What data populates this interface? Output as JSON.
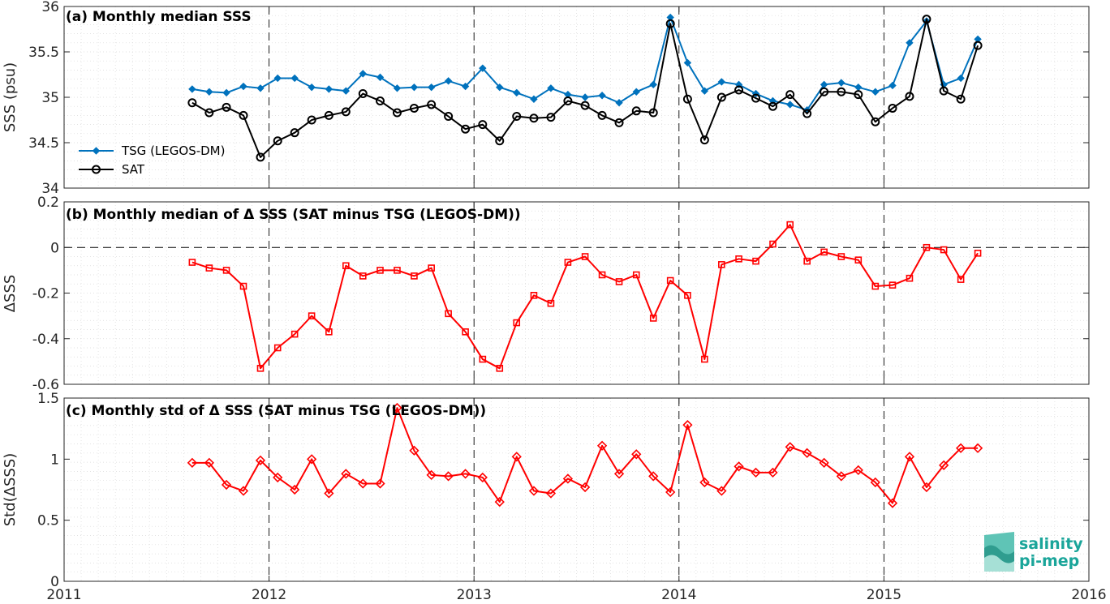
{
  "logo": {
    "line1": "salinity",
    "line2": "pi-mep"
  },
  "colors": {
    "tsg": "#0072BD",
    "sat": "#000000",
    "delta": "#ff0000",
    "logo": "#1aa59a"
  },
  "chart_data": [
    {
      "type": "line",
      "title": "(a) Monthly median SSS",
      "ylabel": "SSS (psu)",
      "xlim": [
        2011,
        2016
      ],
      "ylim": [
        34,
        36
      ],
      "xticks": [
        "2011",
        "2012",
        "2013",
        "2014",
        "2015",
        "2016"
      ],
      "yticks": [
        "34",
        "34.5",
        "35",
        "35.5",
        "36"
      ],
      "grid": true,
      "legend": "left",
      "x": [
        2011.625,
        2011.708,
        2011.792,
        2011.875,
        2011.958,
        2012.042,
        2012.125,
        2012.208,
        2012.292,
        2012.375,
        2012.458,
        2012.542,
        2012.625,
        2012.708,
        2012.792,
        2012.875,
        2012.958,
        2013.042,
        2013.125,
        2013.208,
        2013.292,
        2013.375,
        2013.458,
        2013.542,
        2013.625,
        2013.708,
        2013.792,
        2013.875,
        2013.958,
        2014.042,
        2014.125,
        2014.208,
        2014.292,
        2014.375,
        2014.458,
        2014.542,
        2014.625,
        2014.708,
        2014.792,
        2014.875,
        2014.958,
        2015.042,
        2015.125,
        2015.208,
        2015.292,
        2015.375,
        2015.458
      ],
      "series": [
        {
          "name": "TSG (LEGOS-DM)",
          "marker": "diamond-filled",
          "values": [
            35.09,
            35.06,
            35.05,
            35.12,
            35.1,
            35.21,
            35.21,
            35.11,
            35.09,
            35.07,
            35.26,
            35.22,
            35.1,
            35.11,
            35.11,
            35.18,
            35.12,
            35.32,
            35.11,
            35.05,
            34.98,
            35.1,
            35.03,
            35.0,
            35.02,
            34.94,
            35.06,
            35.14,
            35.88,
            35.38,
            35.07,
            35.17,
            35.14,
            35.04,
            34.96,
            34.92,
            34.86,
            35.14,
            35.16,
            35.11,
            35.06,
            35.13,
            35.6,
            35.84,
            35.14,
            35.21,
            35.64
          ]
        },
        {
          "name": "SAT",
          "marker": "circle-open",
          "values": [
            34.94,
            34.83,
            34.89,
            34.8,
            34.34,
            34.52,
            34.61,
            34.75,
            34.8,
            34.84,
            35.04,
            34.96,
            34.83,
            34.88,
            34.92,
            34.79,
            34.65,
            34.7,
            34.52,
            34.79,
            34.77,
            34.78,
            34.96,
            34.91,
            34.8,
            34.72,
            34.85,
            34.83,
            35.81,
            34.98,
            34.53,
            35.0,
            35.08,
            34.99,
            34.9,
            35.03,
            34.82,
            35.06,
            35.06,
            35.03,
            34.73,
            34.88,
            35.01,
            35.86,
            35.07,
            34.98,
            35.57
          ]
        }
      ]
    },
    {
      "type": "line",
      "title": "(b) Monthly median of Δ SSS (SAT minus TSG (LEGOS-DM))",
      "ylabel": "ΔSSS",
      "xlim": [
        2011,
        2016
      ],
      "ylim": [
        -0.6,
        0.2
      ],
      "yticks": [
        "-0.6",
        "-0.4",
        "-0.2",
        "0",
        "0.2"
      ],
      "grid": true,
      "x": [
        2011.625,
        2011.708,
        2011.792,
        2011.875,
        2011.958,
        2012.042,
        2012.125,
        2012.208,
        2012.292,
        2012.375,
        2012.458,
        2012.542,
        2012.625,
        2012.708,
        2012.792,
        2012.875,
        2012.958,
        2013.042,
        2013.125,
        2013.208,
        2013.292,
        2013.375,
        2013.458,
        2013.542,
        2013.625,
        2013.708,
        2013.792,
        2013.875,
        2013.958,
        2014.042,
        2014.125,
        2014.208,
        2014.292,
        2014.375,
        2014.458,
        2014.542,
        2014.625,
        2014.708,
        2014.792,
        2014.875,
        2014.958,
        2015.042,
        2015.125,
        2015.208,
        2015.292,
        2015.375,
        2015.458
      ],
      "series": [
        {
          "marker": "square-open",
          "values": [
            -0.065,
            -0.09,
            -0.1,
            -0.17,
            -0.53,
            -0.44,
            -0.38,
            -0.3,
            -0.37,
            -0.08,
            -0.125,
            -0.1,
            -0.1,
            -0.125,
            -0.09,
            -0.29,
            -0.37,
            -0.49,
            -0.53,
            -0.33,
            -0.21,
            -0.245,
            -0.065,
            -0.04,
            -0.12,
            -0.15,
            -0.12,
            -0.31,
            -0.145,
            -0.21,
            -0.49,
            -0.075,
            -0.05,
            -0.06,
            0.015,
            0.1,
            -0.06,
            -0.02,
            -0.04,
            -0.055,
            -0.17,
            -0.165,
            -0.135,
            0.0,
            -0.01,
            -0.14,
            -0.025
          ]
        }
      ]
    },
    {
      "type": "line",
      "title": "(c) Monthly std of Δ SSS (SAT minus TSG (LEGOS-DM))",
      "ylabel": "Std(ΔSSS)",
      "xlim": [
        2011,
        2016
      ],
      "ylim": [
        0,
        1.5
      ],
      "yticks": [
        "0",
        "0.5",
        "1",
        "1.5"
      ],
      "grid": true,
      "x": [
        2011.625,
        2011.708,
        2011.792,
        2011.875,
        2011.958,
        2012.042,
        2012.125,
        2012.208,
        2012.292,
        2012.375,
        2012.458,
        2012.542,
        2012.625,
        2012.708,
        2012.792,
        2012.875,
        2012.958,
        2013.042,
        2013.125,
        2013.208,
        2013.292,
        2013.375,
        2013.458,
        2013.542,
        2013.625,
        2013.708,
        2013.792,
        2013.875,
        2013.958,
        2014.042,
        2014.125,
        2014.208,
        2014.292,
        2014.375,
        2014.458,
        2014.542,
        2014.625,
        2014.708,
        2014.792,
        2014.875,
        2014.958,
        2015.042,
        2015.125,
        2015.208,
        2015.292,
        2015.375,
        2015.458
      ],
      "series": [
        {
          "marker": "diamond-open",
          "values": [
            0.97,
            0.97,
            0.79,
            0.74,
            0.99,
            0.85,
            0.75,
            1.0,
            0.72,
            0.88,
            0.8,
            0.8,
            1.42,
            1.07,
            0.87,
            0.86,
            0.88,
            0.85,
            0.65,
            1.02,
            0.74,
            0.72,
            0.84,
            0.77,
            1.11,
            0.88,
            1.04,
            0.86,
            0.73,
            1.28,
            0.81,
            0.74,
            0.94,
            0.89,
            0.89,
            1.1,
            1.05,
            0.97,
            0.86,
            0.91,
            0.81,
            0.64,
            1.02,
            0.77,
            0.95,
            1.09,
            1.09
          ]
        }
      ]
    }
  ]
}
